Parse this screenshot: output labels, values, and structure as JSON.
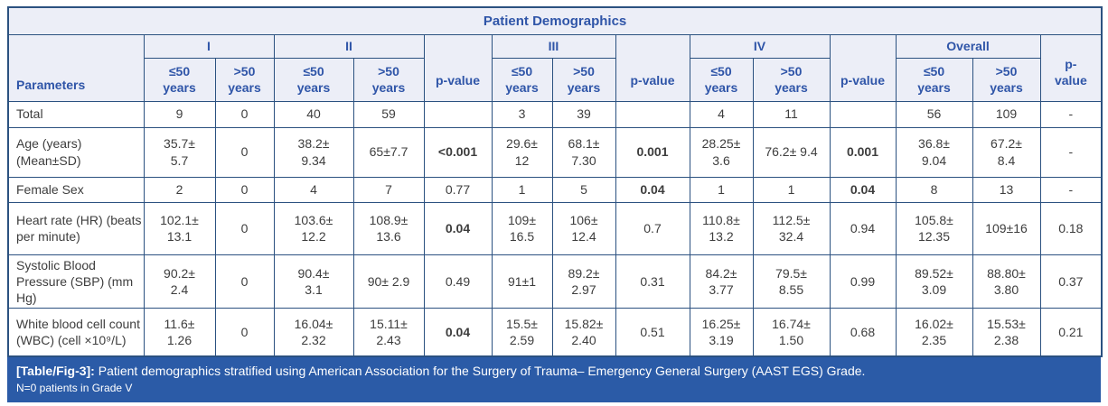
{
  "title": "Patient Demographics",
  "header": {
    "parameters": "Parameters",
    "groups": [
      "I",
      "II",
      "III",
      "IV",
      "Overall"
    ],
    "le50": "≤50\nyears",
    "gt50": ">50\nyears",
    "pvalue": "p-value",
    "pvalue_wrapped": "p-\nvalue"
  },
  "table": {
    "rows": [
      {
        "parameter": "Total",
        "values": [
          "9",
          "0",
          "40",
          "59",
          "",
          "3",
          "39",
          "",
          "4",
          "11",
          "",
          "56",
          "109",
          "-"
        ],
        "bold": []
      },
      {
        "parameter": "Age (years) (Mean±SD)",
        "values": [
          "35.7±\n5.7",
          "0",
          "38.2±\n9.34",
          "65±7.7",
          "<0.001",
          "29.6±\n12",
          "68.1±\n7.30",
          "0.001",
          "28.25±\n3.6",
          "76.2± 9.4",
          "0.001",
          "36.8±\n9.04",
          "67.2±\n8.4",
          "-"
        ],
        "bold": [
          4,
          7,
          10
        ]
      },
      {
        "parameter": "Female Sex",
        "values": [
          "2",
          "0",
          "4",
          "7",
          "0.77",
          "1",
          "5",
          "0.04",
          "1",
          "1",
          "0.04",
          "8",
          "13",
          "-"
        ],
        "bold": [
          7,
          10
        ]
      },
      {
        "parameter": "Heart rate (HR) (beats per minute)",
        "values": [
          "102.1±\n13.1",
          "0",
          "103.6±\n12.2",
          "108.9±\n13.6",
          "0.04",
          "109±\n16.5",
          "106±\n12.4",
          "0.7",
          "110.8±\n13.2",
          "112.5±\n32.4",
          "0.94",
          "105.8±\n12.35",
          "109±16",
          "0.18"
        ],
        "bold": [
          4
        ]
      },
      {
        "parameter": "Systolic Blood Pressure (SBP) (mm Hg)",
        "values": [
          "90.2±\n2.4",
          "0",
          "90.4±\n3.1",
          "90± 2.9",
          "0.49",
          "91±1",
          "89.2±\n2.97",
          "0.31",
          "84.2±\n3.77",
          "79.5±\n8.55",
          "0.99",
          "89.52±\n3.09",
          "88.80±\n3.80",
          "0.37"
        ],
        "bold": []
      },
      {
        "parameter": "White blood cell count (WBC) (cell ×10⁹/L)",
        "values": [
          "11.6±\n1.26",
          "0",
          "16.04±\n2.32",
          "15.11±\n2.43",
          "0.04",
          "15.5±\n2.59",
          "15.82±\n2.40",
          "0.51",
          "16.25±\n3.19",
          "16.74±\n1.50",
          "0.68",
          "16.02±\n2.35",
          "15.53±\n2.38",
          "0.21"
        ],
        "bold": [
          4
        ]
      }
    ]
  },
  "caption": {
    "tag": "[Table/Fig-3]:",
    "text": "Patient demographics stratified using American Association for the Surgery of Trauma– Emergency General Surgery (AAST EGS) Grade.",
    "note": "N=0 patients in Grade V"
  },
  "colors": {
    "border": "#2b5180",
    "header_bg": "#eceef7",
    "header_text": "#2f55a8",
    "body_text": "#3d3d3d",
    "caption_bg": "#2b5ba7",
    "caption_text": "#ffffff"
  }
}
